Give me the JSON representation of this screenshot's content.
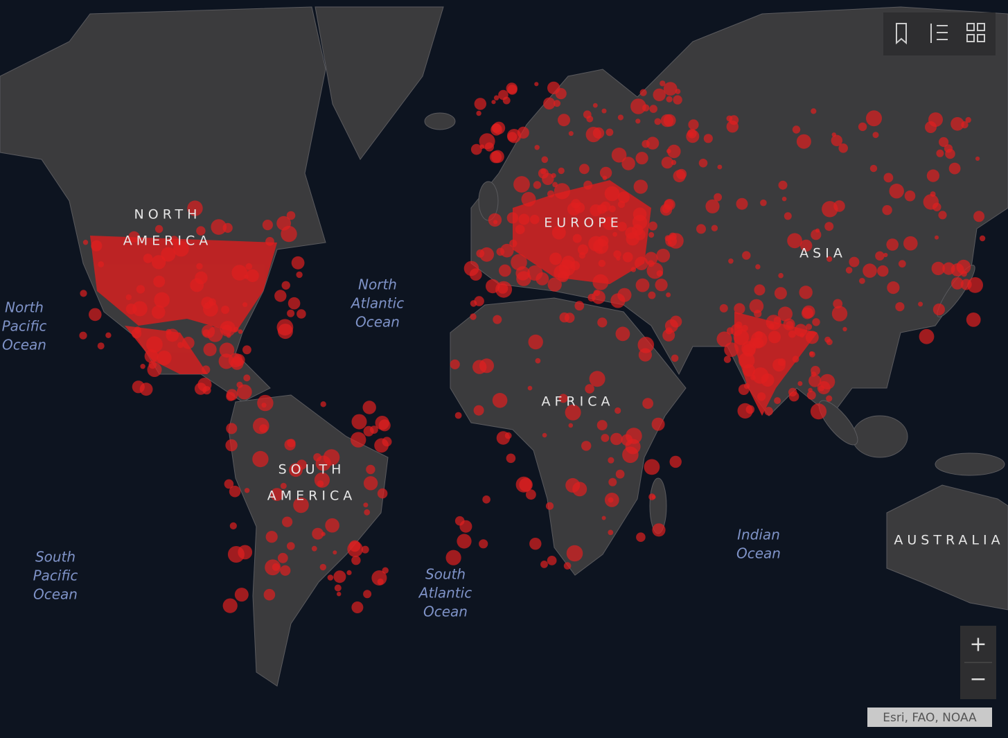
{
  "map": {
    "continents": [
      {
        "lines": [
          "NORTH",
          "AMERICA"
        ]
      },
      {
        "lines": [
          "EUROPE"
        ]
      },
      {
        "lines": [
          "ASIA"
        ]
      },
      {
        "lines": [
          "AFRICA"
        ]
      },
      {
        "lines": [
          "SOUTH",
          "AMERICA"
        ]
      },
      {
        "lines": [
          "AUSTRALIA"
        ]
      }
    ],
    "oceans": [
      {
        "lines": [
          "North",
          "Pacific",
          "Ocean"
        ]
      },
      {
        "lines": [
          "North",
          "Atlantic",
          "Ocean"
        ]
      },
      {
        "lines": [
          "South",
          "Pacific",
          "Ocean"
        ]
      },
      {
        "lines": [
          "South",
          "Atlantic",
          "Ocean"
        ]
      },
      {
        "lines": [
          "Indian",
          "Ocean"
        ]
      }
    ],
    "zoom_in": "+",
    "zoom_out": "−",
    "attribution": "Esri, FAO, NOAA"
  }
}
